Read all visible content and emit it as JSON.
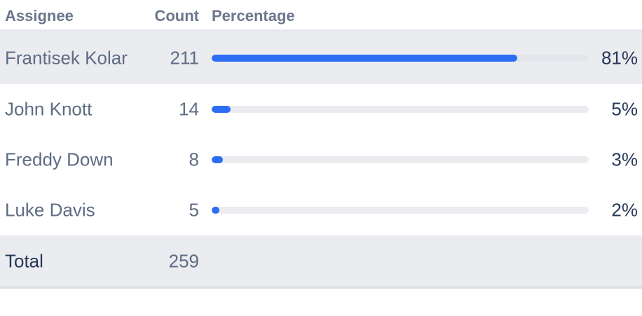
{
  "header": {
    "assignee": "Assignee",
    "count": "Count",
    "percentage": "Percentage"
  },
  "rows": [
    {
      "name": "Frantisek Kolar",
      "count": "211",
      "percentage": "81%",
      "fraction": 0.81
    },
    {
      "name": "John Knott",
      "count": "14",
      "percentage": "5%",
      "fraction": 0.05
    },
    {
      "name": "Freddy Down",
      "count": "8",
      "percentage": "3%",
      "fraction": 0.03
    },
    {
      "name": "Luke Davis",
      "count": "5",
      "percentage": "2%",
      "fraction": 0.02
    }
  ],
  "total": {
    "label": "Total",
    "count": "259"
  },
  "colors": {
    "bar": "#2d6df6",
    "track": "#ebecf0",
    "highlight": "#ebecf0"
  }
}
